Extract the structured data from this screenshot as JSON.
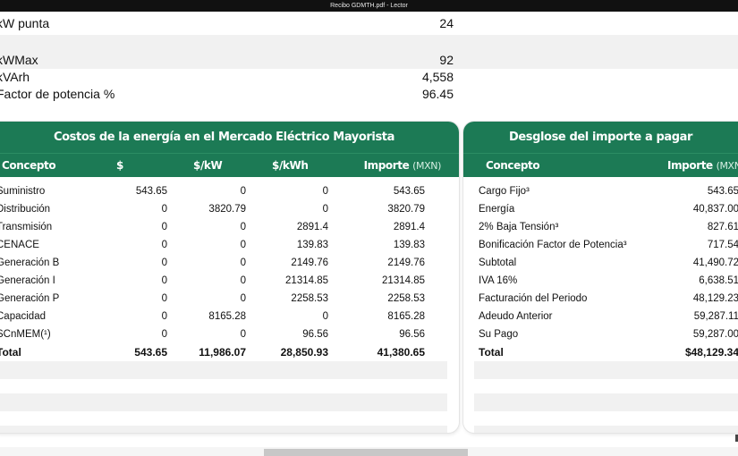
{
  "window": {
    "title": "Recibo GDMTH.pdf - Lector"
  },
  "top_rows": [
    {
      "label": "kW punta",
      "value": "24",
      "shade": false
    },
    {
      "label": "",
      "value": "",
      "shade": true
    },
    {
      "label": "kWMax",
      "value": "92",
      "shade": true
    },
    {
      "label": "kVArh",
      "value": "4,558",
      "shade": false
    },
    {
      "label": "Factor de potencia %",
      "value": "96.45",
      "shade": false
    }
  ],
  "mem_table": {
    "title": "Costos de la energía en el Mercado Eléctrico Mayorista",
    "headers": {
      "concepto": "Concepto",
      "pesos": "$",
      "per_kw": "$/kW",
      "per_kwh": "$/kWh",
      "importe": "Importe",
      "importe_unit": "(MXN)"
    },
    "rows": [
      {
        "concepto": "Suministro",
        "pesos": "543.65",
        "per_kw": "0",
        "per_kwh": "0",
        "importe": "543.65"
      },
      {
        "concepto": "Distribución",
        "pesos": "0",
        "per_kw": "3820.79",
        "per_kwh": "0",
        "importe": "3820.79"
      },
      {
        "concepto": "Transmisión",
        "pesos": "0",
        "per_kw": "0",
        "per_kwh": "2891.4",
        "importe": "2891.4"
      },
      {
        "concepto": "CENACE",
        "pesos": "0",
        "per_kw": "0",
        "per_kwh": "139.83",
        "importe": "139.83"
      },
      {
        "concepto": "Generación B",
        "pesos": "0",
        "per_kw": "0",
        "per_kwh": "2149.76",
        "importe": "2149.76"
      },
      {
        "concepto": "Generación I",
        "pesos": "0",
        "per_kw": "0",
        "per_kwh": "21314.85",
        "importe": "21314.85"
      },
      {
        "concepto": "Generación P",
        "pesos": "0",
        "per_kw": "0",
        "per_kwh": "2258.53",
        "importe": "2258.53"
      },
      {
        "concepto": "Capacidad",
        "pesos": "0",
        "per_kw": "8165.28",
        "per_kwh": "0",
        "importe": "8165.28"
      },
      {
        "concepto": "SCnMEM(¹)",
        "pesos": "0",
        "per_kw": "0",
        "per_kwh": "96.56",
        "importe": "96.56"
      }
    ],
    "total": {
      "concepto": "Total",
      "pesos": "543.65",
      "per_kw": "11,986.07",
      "per_kwh": "28,850.93",
      "importe": "41,380.65"
    }
  },
  "breakdown": {
    "title": "Desglose del importe a pagar",
    "headers": {
      "concepto": "Concepto",
      "importe": "Importe",
      "importe_unit": "(MXN)"
    },
    "rows": [
      {
        "concepto": "Cargo Fijo³",
        "importe": "543.65"
      },
      {
        "concepto": "Energía",
        "importe": "40,837.00"
      },
      {
        "concepto": "2% Baja Tensión³",
        "importe": "827.61"
      },
      {
        "concepto": "Bonificación Factor de Potencia³",
        "importe": "717.54"
      },
      {
        "concepto": "Subtotal",
        "importe": "41,490.72"
      },
      {
        "concepto": "IVA 16%",
        "importe": "6,638.51"
      },
      {
        "concepto": "Facturación del Periodo",
        "importe": "48,129.23"
      },
      {
        "concepto": "Adeudo Anterior",
        "importe": "59,287.11"
      },
      {
        "concepto": "Su Pago",
        "importe": "59,287.00"
      }
    ],
    "total": {
      "concepto": "Total",
      "importe": "$48,129.34"
    }
  },
  "colors": {
    "header_green": "#1c7a55",
    "row_shade": "#f1f1f1",
    "titlebar": "#111111"
  }
}
